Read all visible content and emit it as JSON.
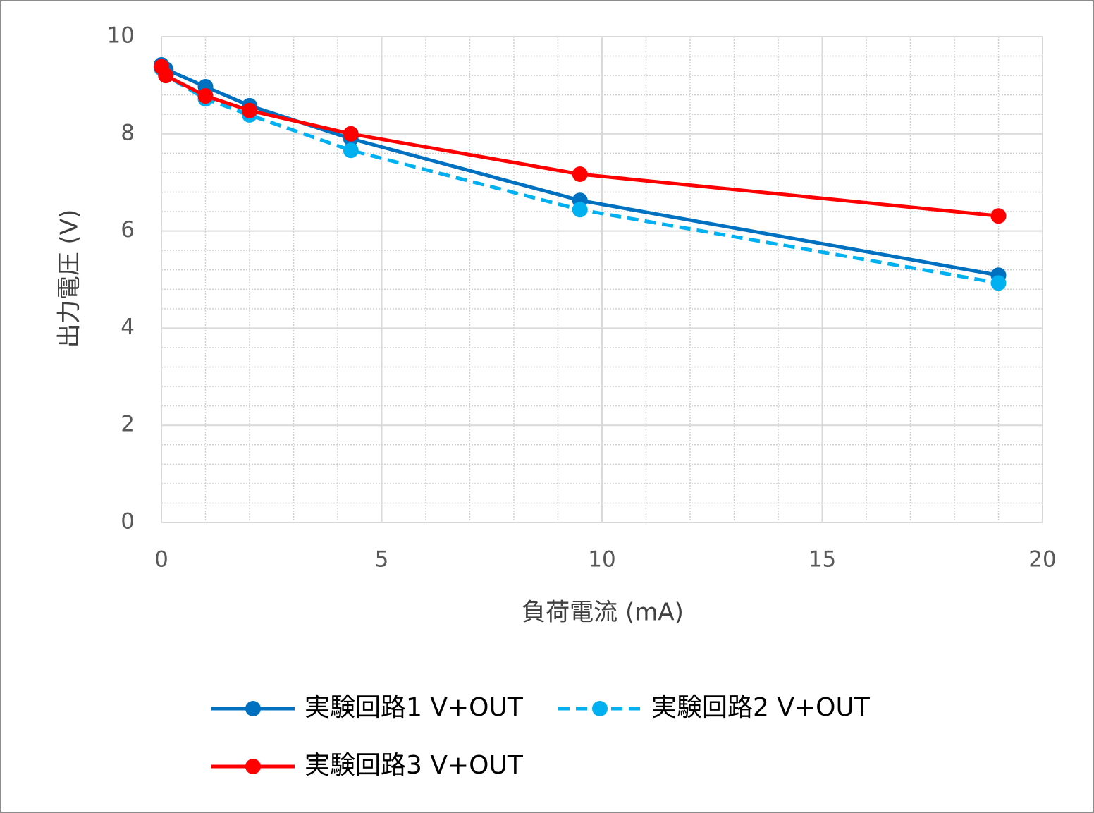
{
  "chart_data": {
    "type": "line",
    "x_label": "負荷電流 (mA)",
    "y_label": "出力電圧 (V)",
    "x": [
      0,
      0.1,
      1,
      2,
      4.3,
      9.5,
      19
    ],
    "series": [
      {
        "name": "実験回路1 V+OUT",
        "color": "#0070c0",
        "dash": false,
        "values": [
          9.42,
          9.33,
          8.97,
          8.58,
          7.9,
          6.63,
          5.09
        ]
      },
      {
        "name": "実験回路2 V+OUT",
        "color": "#00b0f0",
        "dash": true,
        "values": [
          9.35,
          9.2,
          8.72,
          8.39,
          7.66,
          6.44,
          4.93
        ]
      },
      {
        "name": "実験回路3 V+OUT",
        "color": "#ff0000",
        "dash": false,
        "values": [
          9.38,
          9.2,
          8.78,
          8.48,
          8.0,
          7.17,
          6.31
        ]
      }
    ],
    "xlim": [
      0,
      20
    ],
    "xticks": [
      0,
      5,
      10,
      15,
      20
    ],
    "ylim": [
      0,
      10
    ],
    "yticks": [
      0,
      2,
      4,
      6,
      8,
      10
    ],
    "grid": true,
    "minor_grid": true,
    "legend": "bottom"
  }
}
